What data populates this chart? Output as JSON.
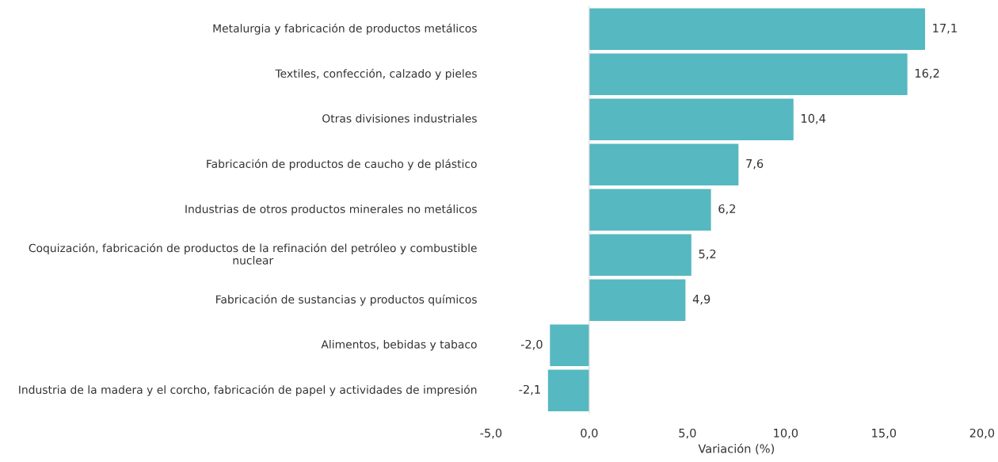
{
  "chart_data": {
    "type": "bar",
    "orientation": "horizontal",
    "categories": [
      "Metalurgia y fabricación de productos metálicos",
      "Textiles, confección, calzado y pieles",
      "Otras divisiones industriales",
      "Fabricación de productos de caucho y de plástico",
      "Industrias de otros productos minerales no metálicos",
      "Coquización, fabricación de productos de la refinación del petróleo y combustible nuclear",
      "Fabricación de sustancias y productos químicos",
      "Alimentos, bebidas y tabaco",
      "Industria de la madera y el corcho, fabricación de papel y actividades de impresión"
    ],
    "values": [
      17.1,
      16.2,
      10.4,
      7.6,
      6.2,
      5.2,
      4.9,
      -2.0,
      -2.1
    ],
    "value_labels": [
      "17,1",
      "16,2",
      "10,4",
      "7,6",
      "6,2",
      "5,2",
      "4,9",
      "-2,0",
      "-2,1"
    ],
    "color": "#56b8c0",
    "xlabel": "Variación (%)",
    "xlim": [
      -5,
      20
    ],
    "xticks": [
      {
        "value": -5,
        "label": "-5,0"
      },
      {
        "value": 0,
        "label": "0,0"
      },
      {
        "value": 5,
        "label": "5,0"
      },
      {
        "value": 10,
        "label": "10,0"
      },
      {
        "value": 15,
        "label": "15,0"
      },
      {
        "value": 20,
        "label": "20,0"
      }
    ],
    "legend": false
  }
}
